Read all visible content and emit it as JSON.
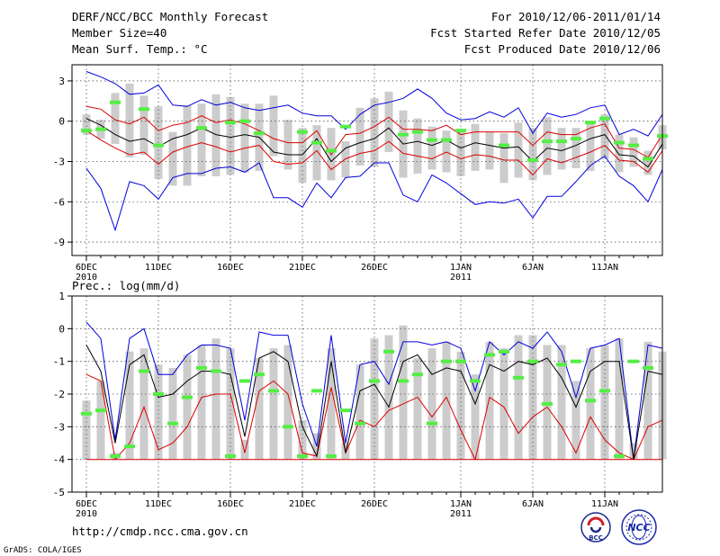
{
  "header": {
    "title": "DERF/NCC/BCC Monthly Forecast",
    "member_size": "Member Size=40",
    "variable": "Mean Surf. Temp.: °C",
    "forecast_range": "For 2010/12/06-2011/01/14",
    "started_refer": "Fcst Started Refer Date 2010/12/05",
    "produced": "Fcst Produced Date 2010/12/06"
  },
  "footer": {
    "url": "http://cmdp.ncc.cma.gov.cn",
    "credit": "GrADS: COLA/IGES"
  },
  "logos": {
    "bcc_text": "BCC",
    "ncc_text": "NCC"
  },
  "colors": {
    "max_min": "#0000dd",
    "mean": "#000000",
    "std": "#dd0000",
    "box": "#cccccc",
    "obs": "#55ee44",
    "grid": "#555555"
  },
  "chart_data": [
    {
      "type": "box",
      "title": "Mean Surf. Temp.: °C",
      "n_days": 40,
      "x_ticks": [
        {
          "day": 0,
          "label": "6DEC",
          "sub": "2010"
        },
        {
          "day": 5,
          "label": "11DEC"
        },
        {
          "day": 10,
          "label": "16DEC"
        },
        {
          "day": 15,
          "label": "21DEC"
        },
        {
          "day": 20,
          "label": "26DEC"
        },
        {
          "day": 26,
          "label": "1JAN",
          "sub": "2011"
        },
        {
          "day": 31,
          "label": "6JAN"
        },
        {
          "day": 36,
          "label": "11JAN"
        }
      ],
      "yticks": [
        3,
        0,
        -3,
        -6,
        -9
      ],
      "ylim": [
        -10,
        4.2
      ],
      "series": [
        {
          "name": "ensemble max",
          "values": [
            3.7,
            3.3,
            2.8,
            2.0,
            2.1,
            2.7,
            1.2,
            1.1,
            1.6,
            1.2,
            1.4,
            1.0,
            0.8,
            1.0,
            1.2,
            0.6,
            0.4,
            0.4,
            -0.6,
            0.5,
            1.2,
            1.4,
            1.7,
            2.4,
            1.7,
            0.6,
            0.1,
            0.2,
            0.7,
            0.3,
            1.0,
            -0.9,
            0.6,
            0.3,
            0.5,
            1.0,
            1.2,
            -1.0,
            -0.6,
            -1.1,
            0.5
          ]
        },
        {
          "name": "mean + 1 std",
          "values": [
            1.1,
            0.9,
            0.1,
            -0.2,
            0.3,
            -0.7,
            -0.3,
            -0.1,
            0.4,
            -0.1,
            0.1,
            -0.2,
            -0.7,
            -1.3,
            -1.6,
            -1.6,
            -0.7,
            -2.5,
            -1.0,
            -0.9,
            -0.4,
            0.3,
            -0.6,
            -0.6,
            -0.7,
            -0.3,
            -1.0,
            -0.8,
            -0.8,
            -0.8,
            -0.8,
            -1.8,
            -0.8,
            -1.0,
            -1.0,
            -0.5,
            -0.2,
            -2.0,
            -2.1,
            -2.7,
            -1.0
          ]
        },
        {
          "name": "ensemble mean",
          "values": [
            0.2,
            -0.3,
            -1.0,
            -1.5,
            -1.3,
            -1.9,
            -1.3,
            -1.0,
            -0.5,
            -1.0,
            -1.2,
            -1.0,
            -1.2,
            -2.3,
            -2.5,
            -2.5,
            -1.3,
            -3.0,
            -2.0,
            -1.6,
            -1.3,
            -0.5,
            -1.7,
            -1.5,
            -1.8,
            -1.4,
            -2.0,
            -1.6,
            -1.8,
            -2.0,
            -1.9,
            -3.0,
            -2.0,
            -2.2,
            -1.8,
            -1.3,
            -1.0,
            -2.5,
            -2.6,
            -3.4,
            -1.7
          ]
        },
        {
          "name": "mean - 1 std",
          "values": [
            -0.7,
            -1.4,
            -2.0,
            -2.5,
            -2.3,
            -3.2,
            -2.3,
            -1.9,
            -1.6,
            -1.9,
            -2.3,
            -2.0,
            -1.8,
            -3.0,
            -3.2,
            -3.1,
            -2.2,
            -3.6,
            -2.8,
            -2.4,
            -2.2,
            -1.5,
            -2.4,
            -2.6,
            -2.8,
            -2.3,
            -2.8,
            -2.5,
            -2.6,
            -2.9,
            -2.9,
            -4.0,
            -2.8,
            -3.1,
            -2.7,
            -2.3,
            -1.8,
            -2.9,
            -3.0,
            -3.8,
            -2.2
          ]
        },
        {
          "name": "ensemble min",
          "values": [
            -3.5,
            -5.0,
            -8.1,
            -4.5,
            -4.8,
            -5.8,
            -4.2,
            -3.9,
            -3.9,
            -3.5,
            -3.4,
            -3.8,
            -3.1,
            -5.7,
            -5.7,
            -6.4,
            -4.6,
            -5.7,
            -4.2,
            -4.1,
            -3.1,
            -3.1,
            -5.5,
            -6.0,
            -4.0,
            -4.6,
            -5.4,
            -6.2,
            -6.0,
            -6.1,
            -5.8,
            -7.2,
            -5.6,
            -5.6,
            -4.5,
            -3.3,
            -2.6,
            -4.1,
            -4.8,
            -6.0,
            -3.6
          ]
        },
        {
          "name": "box upper",
          "values": [
            0.5,
            0.1,
            2.1,
            2.8,
            1.9,
            1.1,
            -0.8,
            1.2,
            1.3,
            2.0,
            1.8,
            1.3,
            1.3,
            1.9,
            0.1,
            -0.5,
            -0.3,
            -0.5,
            -1.5,
            1.0,
            1.7,
            2.2,
            0.8,
            0.2,
            -0.4,
            -0.7,
            -0.6,
            -0.2,
            -0.8,
            -0.9,
            -0.1,
            -0.5,
            0.3,
            -0.5,
            -0.5,
            0.0,
            0.5,
            -1.0,
            -1.2,
            -2.2,
            -0.3
          ]
        },
        {
          "name": "box lower",
          "values": [
            -1.0,
            -1.3,
            -1.7,
            -2.7,
            -2.5,
            -4.3,
            -4.8,
            -4.8,
            -4.1,
            -4.1,
            -4.0,
            -3.8,
            -3.7,
            -2.6,
            -3.6,
            -4.6,
            -4.4,
            -4.4,
            -4.2,
            -3.3,
            -3.4,
            -2.3,
            -4.2,
            -3.9,
            -3.6,
            -3.8,
            -4.1,
            -3.7,
            -3.6,
            -4.6,
            -4.2,
            -4.4,
            -4.0,
            -3.6,
            -3.5,
            -3.7,
            -2.8,
            -3.8,
            -3.4,
            -4.0,
            -2.1
          ]
        },
        {
          "name": "observed",
          "values": [
            -0.7,
            -0.6,
            1.4,
            null,
            0.9,
            -1.8,
            null,
            null,
            -0.5,
            null,
            -0.1,
            0.0,
            -0.9,
            null,
            null,
            -0.8,
            -1.6,
            -2.2,
            -0.4,
            null,
            null,
            null,
            -1.0,
            -0.8,
            -1.4,
            -1.4,
            -0.7,
            null,
            null,
            -1.8,
            null,
            -2.9,
            -1.5,
            -1.5,
            -1.3,
            -0.1,
            0.2,
            -1.6,
            -1.8,
            -2.8,
            -1.1
          ]
        }
      ]
    },
    {
      "type": "box",
      "title": "Prec.: log(mm/d)",
      "n_days": 40,
      "x_ticks": [
        {
          "day": 0,
          "label": "6DEC",
          "sub": "2010"
        },
        {
          "day": 5,
          "label": "11DEC"
        },
        {
          "day": 10,
          "label": "16DEC"
        },
        {
          "day": 15,
          "label": "21DEC"
        },
        {
          "day": 20,
          "label": "26DEC"
        },
        {
          "day": 26,
          "label": "1JAN",
          "sub": "2011"
        },
        {
          "day": 31,
          "label": "6JAN"
        },
        {
          "day": 36,
          "label": "11JAN"
        }
      ],
      "yticks": [
        1,
        0,
        -1,
        -2,
        -3,
        -4,
        -5
      ],
      "ylim": [
        -5,
        1
      ],
      "series": [
        {
          "name": "ensemble max",
          "values": [
            0.2,
            -0.3,
            -3.4,
            -0.3,
            0.0,
            -1.4,
            -1.4,
            -0.8,
            -0.5,
            -0.5,
            -0.6,
            -2.8,
            -0.1,
            -0.2,
            -0.2,
            -2.3,
            -3.6,
            -0.2,
            -3.5,
            -1.1,
            -1.0,
            -1.7,
            -0.4,
            -0.4,
            -0.5,
            -0.4,
            -0.6,
            -1.9,
            -0.4,
            -0.8,
            -0.4,
            -0.6,
            -0.1,
            -0.7,
            -2.1,
            -0.6,
            -0.5,
            -0.3,
            -4.0,
            -0.5,
            -0.6
          ]
        },
        {
          "name": "ensemble mean",
          "values": [
            -0.5,
            -1.3,
            -3.5,
            -1.1,
            -0.8,
            -2.1,
            -2.0,
            -1.6,
            -1.3,
            -1.3,
            -1.4,
            -3.3,
            -0.9,
            -0.7,
            -1.0,
            -3.0,
            -3.9,
            -1.0,
            -3.8,
            -1.9,
            -1.7,
            -2.4,
            -1.0,
            -0.8,
            -1.4,
            -1.2,
            -1.3,
            -2.3,
            -1.1,
            -1.3,
            -1.0,
            -1.1,
            -0.9,
            -1.5,
            -2.4,
            -1.3,
            -1.0,
            -1.0,
            -4.0,
            -1.3,
            -1.4
          ]
        },
        {
          "name": "mean - 1 std",
          "values": [
            -1.4,
            -1.6,
            -4.0,
            -3.5,
            -2.4,
            -3.7,
            -3.5,
            -3.0,
            -2.1,
            -2.0,
            -2.0,
            -3.8,
            -1.9,
            -1.6,
            -2.0,
            -3.8,
            -3.9,
            -1.8,
            -3.8,
            -2.8,
            -3.0,
            -2.5,
            -2.3,
            -2.1,
            -2.7,
            -2.1,
            -3.1,
            -4.0,
            -2.1,
            -2.4,
            -3.2,
            -2.7,
            -2.4,
            -3.0,
            -3.8,
            -2.7,
            -3.4,
            -3.8,
            -4.0,
            -3.0,
            -2.8
          ]
        },
        {
          "name": "box upper",
          "values": [
            -2.2,
            -1.6,
            -3.8,
            -0.7,
            -0.6,
            -1.1,
            -1.2,
            -0.8,
            -0.5,
            -0.3,
            -0.6,
            -3.4,
            -0.9,
            -0.6,
            -0.5,
            -2.8,
            -3.2,
            -0.6,
            -3.5,
            -1.1,
            -0.3,
            -0.2,
            0.1,
            -0.9,
            -0.6,
            -0.4,
            -0.7,
            -1.4,
            -0.4,
            -0.6,
            -0.2,
            -0.2,
            -0.5,
            -0.5,
            -1.6,
            -0.6,
            -0.5,
            -0.3,
            -3.5,
            -0.4,
            -0.7
          ]
        },
        {
          "name": "box lower",
          "values": [
            -4.0,
            -4.0,
            -4.0,
            -4.0,
            -4.0,
            -4.0,
            -4.0,
            -4.0,
            -4.0,
            -4.0,
            -4.0,
            -4.0,
            -4.0,
            -4.0,
            -4.0,
            -4.0,
            -4.0,
            -4.0,
            -4.0,
            -4.0,
            -4.0,
            -4.0,
            -4.0,
            -4.0,
            -4.0,
            -4.0,
            -4.0,
            -4.0,
            -4.0,
            -4.0,
            -4.0,
            -4.0,
            -4.0,
            -4.0,
            -4.0,
            -4.0,
            -4.0,
            -4.0,
            -4.0,
            -4.0,
            -4.0
          ]
        },
        {
          "name": "observed",
          "values": [
            -2.6,
            -2.5,
            -3.9,
            -3.6,
            -1.3,
            -2.0,
            -2.9,
            -2.1,
            -1.2,
            -1.3,
            -3.9,
            -1.6,
            -1.4,
            -1.9,
            -3.0,
            -3.9,
            -1.9,
            -3.9,
            -2.5,
            -2.9,
            -1.6,
            -0.7,
            -1.6,
            -1.4,
            -2.9,
            -1.0,
            -1.0,
            -1.6,
            -0.8,
            -0.7,
            -1.5,
            -1.0,
            -2.3,
            -1.1,
            -1.0,
            -2.2,
            -1.9,
            -3.9,
            -1.0,
            -1.2,
            null
          ]
        },
        {
          "name": "min floor",
          "values": [
            -4.0,
            -4.0,
            -4.0,
            -4.0,
            -4.0,
            -4.0,
            -4.0,
            -4.0,
            -4.0,
            -4.0,
            -4.0,
            -4.0,
            -4.0,
            -4.0,
            -4.0,
            -4.0,
            -4.0,
            -4.0,
            -4.0,
            -4.0,
            -4.0,
            -4.0,
            -4.0,
            -4.0,
            -4.0,
            -4.0,
            -4.0,
            -4.0,
            -4.0,
            -4.0,
            -4.0,
            -4.0,
            -4.0,
            -4.0,
            -4.0,
            -4.0,
            -4.0,
            -4.0,
            -4.0,
            -4.0,
            -4.0
          ]
        }
      ]
    }
  ]
}
